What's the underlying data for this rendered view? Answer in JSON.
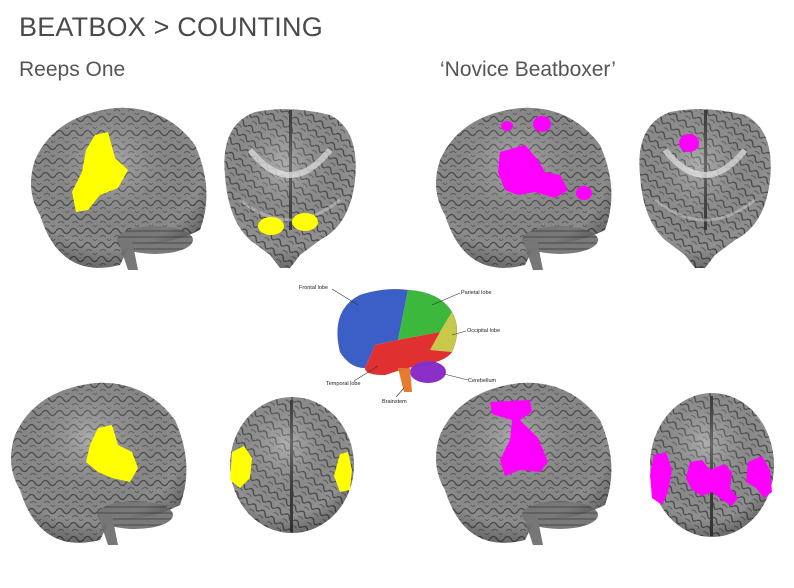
{
  "header": {
    "title": "BEATBOX > COUNTING",
    "left_subject": "Reeps One",
    "right_subject": "‘Novice Beatboxer’"
  },
  "colors": {
    "reeps_activation": "#ffff00",
    "novice_activation": "#ff00ff",
    "brain_gray": "#8a8a8a"
  },
  "lobe_diagram": {
    "frontal": {
      "label": "Frontal lobe",
      "color": "#3b5fc6"
    },
    "parietal": {
      "label": "Parietal lobe",
      "color": "#3cb83c"
    },
    "occipital": {
      "label": "Occipital lobe",
      "color": "#c8c84a"
    },
    "temporal": {
      "label": "Temporal lobe",
      "color": "#e03030"
    },
    "cerebellum": {
      "label": "Cerebellum",
      "color": "#8a2fc8"
    },
    "brainstem": {
      "label": "Brainstem",
      "color": "#e87a30"
    }
  }
}
